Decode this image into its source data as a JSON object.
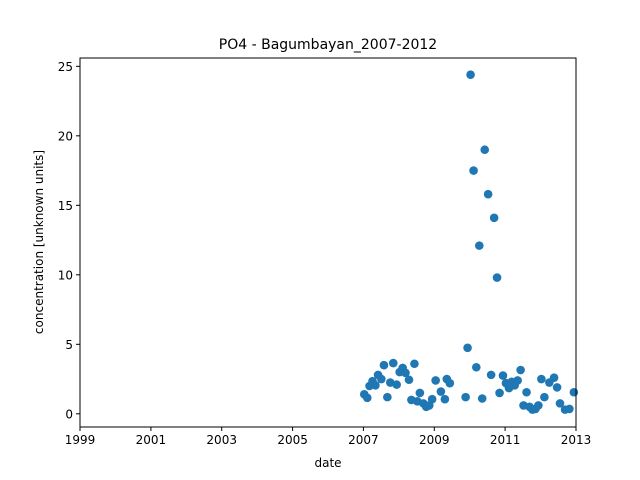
{
  "chart_data": {
    "type": "scatter",
    "title": "PO4 - Bagumbayan_2007-2012",
    "xlabel": "date",
    "ylabel": "concentration [unknown units]",
    "x_axis_type": "date",
    "xlim": [
      "1999-01-01",
      "2013-01-01"
    ],
    "ylim": [
      -0.95,
      25.6
    ],
    "xticks": [
      "1999",
      "2001",
      "2003",
      "2005",
      "2007",
      "2009",
      "2011",
      "2013"
    ],
    "yticks": [
      0,
      5,
      10,
      15,
      20,
      25
    ],
    "grid": false,
    "legend": "none",
    "marker_color": "#1f77b4",
    "series": [
      {
        "points": [
          [
            "2007-01-10",
            1.4
          ],
          [
            "2007-02-10",
            1.15
          ],
          [
            "2007-03-05",
            2.0
          ],
          [
            "2007-04-05",
            2.35
          ],
          [
            "2007-05-05",
            2.05
          ],
          [
            "2007-06-01",
            2.8
          ],
          [
            "2007-07-05",
            2.5
          ],
          [
            "2007-08-01",
            3.5
          ],
          [
            "2007-09-05",
            1.2
          ],
          [
            "2007-10-05",
            2.25
          ],
          [
            "2007-11-05",
            3.65
          ],
          [
            "2007-12-10",
            2.1
          ],
          [
            "2008-01-10",
            3.0
          ],
          [
            "2008-02-10",
            3.3
          ],
          [
            "2008-03-10",
            2.95
          ],
          [
            "2008-04-15",
            2.45
          ],
          [
            "2008-05-10",
            1.0
          ],
          [
            "2008-06-10",
            3.6
          ],
          [
            "2008-07-10",
            0.9
          ],
          [
            "2008-08-05",
            1.5
          ],
          [
            "2008-09-10",
            0.75
          ],
          [
            "2008-10-10",
            0.5
          ],
          [
            "2008-11-10",
            0.6
          ],
          [
            "2008-12-10",
            1.05
          ],
          [
            "2009-01-15",
            2.4
          ],
          [
            "2009-03-10",
            1.6
          ],
          [
            "2009-04-20",
            1.05
          ],
          [
            "2009-05-10",
            2.5
          ],
          [
            "2009-06-10",
            2.2
          ],
          [
            "2009-11-20",
            1.2
          ],
          [
            "2009-12-10",
            4.75
          ],
          [
            "2010-01-10",
            24.4
          ],
          [
            "2010-02-10",
            17.5
          ],
          [
            "2010-03-10",
            3.35
          ],
          [
            "2010-04-10",
            12.1
          ],
          [
            "2010-05-10",
            1.1
          ],
          [
            "2010-06-05",
            19.0
          ],
          [
            "2010-07-10",
            15.8
          ],
          [
            "2010-08-10",
            2.8
          ],
          [
            "2010-09-10",
            14.1
          ],
          [
            "2010-10-10",
            9.8
          ],
          [
            "2010-11-05",
            1.5
          ],
          [
            "2010-12-10",
            2.75
          ],
          [
            "2011-01-10",
            2.2
          ],
          [
            "2011-02-10",
            1.85
          ],
          [
            "2011-03-10",
            2.3
          ],
          [
            "2011-04-10",
            2.05
          ],
          [
            "2011-05-10",
            2.4
          ],
          [
            "2011-06-10",
            3.15
          ],
          [
            "2011-07-10",
            0.6
          ],
          [
            "2011-08-10",
            1.55
          ],
          [
            "2011-09-10",
            0.5
          ],
          [
            "2011-10-10",
            0.3
          ],
          [
            "2011-11-10",
            0.35
          ],
          [
            "2011-12-10",
            0.6
          ],
          [
            "2012-01-10",
            2.5
          ],
          [
            "2012-02-10",
            1.2
          ],
          [
            "2012-04-01",
            2.25
          ],
          [
            "2012-05-20",
            2.6
          ],
          [
            "2012-06-20",
            1.9
          ],
          [
            "2012-07-20",
            0.75
          ],
          [
            "2012-09-10",
            0.3
          ],
          [
            "2012-10-25",
            0.35
          ],
          [
            "2012-12-10",
            1.55
          ]
        ]
      }
    ]
  }
}
